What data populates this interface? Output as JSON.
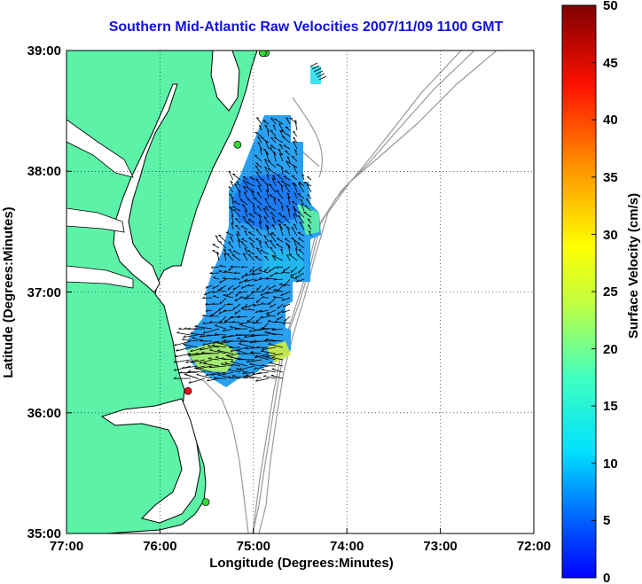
{
  "title": "Southern Mid-Atlantic Raw Velocities 2007/11/09 1100 GMT",
  "x_axis": {
    "label": "Longitude (Degrees:Minutes)",
    "ticks": [
      "77:00",
      "76:00",
      "75:00",
      "74:00",
      "73:00",
      "72:00"
    ]
  },
  "y_axis": {
    "label": "Latitude (Degrees:Minutes)",
    "ticks": [
      "39:00",
      "38:00",
      "37:00",
      "36:00",
      "35:00"
    ]
  },
  "colorbar": {
    "label": "Surface Velocity (cm/s)",
    "ticks": [
      "50",
      "45",
      "40",
      "35",
      "30",
      "25",
      "20",
      "15",
      "10",
      "5",
      "0"
    ],
    "min": 0,
    "max": 50,
    "colormap": "jet"
  },
  "colors": {
    "title": "#1010e0",
    "land": "#5cf2a8",
    "bathymetry": "#999999",
    "station_green": "#33dd33",
    "station_red": "#ee1111"
  },
  "chart_data": {
    "type": "map",
    "extent": {
      "lon": [
        -77,
        -72
      ],
      "lat": [
        35,
        39
      ]
    },
    "stations": [
      {
        "lon": -74.87,
        "lat": 38.98,
        "color": "green"
      },
      {
        "lon": -74.9,
        "lat": 38.98,
        "color": "green"
      },
      {
        "lon": -75.17,
        "lat": 38.22,
        "color": "green"
      },
      {
        "lon": -75.7,
        "lat": 36.18,
        "color": "red"
      },
      {
        "lon": -75.51,
        "lat": 35.26,
        "color": "green"
      }
    ],
    "grid": true
  }
}
